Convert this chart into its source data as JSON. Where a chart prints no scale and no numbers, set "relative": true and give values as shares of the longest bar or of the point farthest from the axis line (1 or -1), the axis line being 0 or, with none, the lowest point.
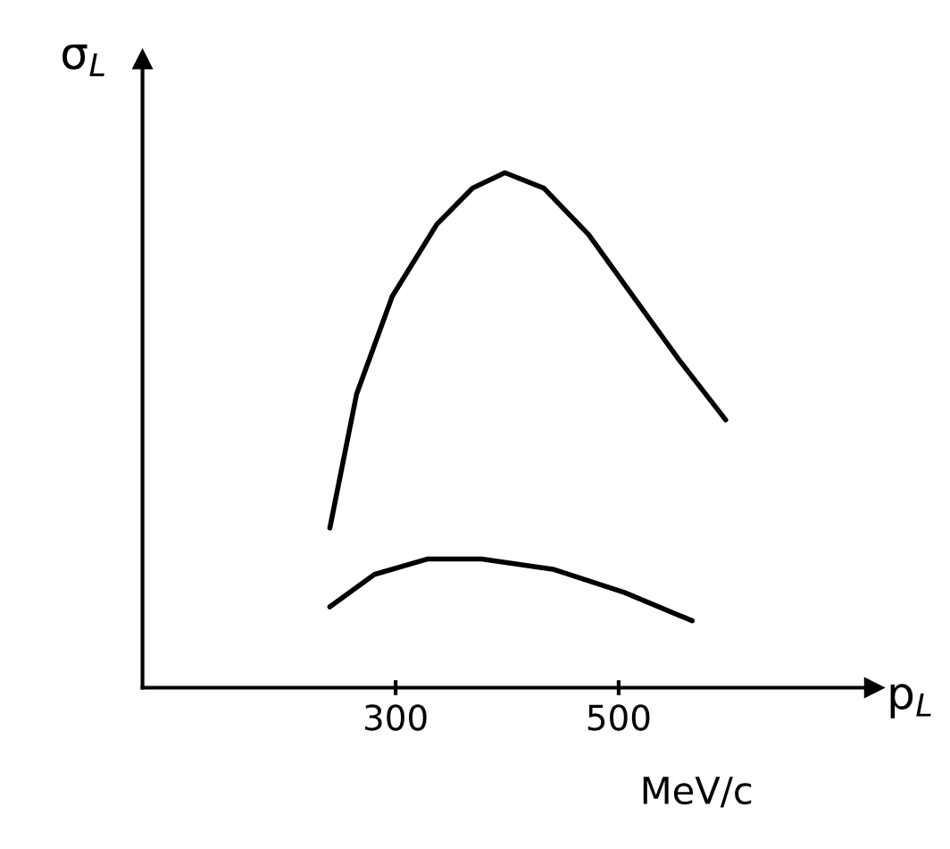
{
  "chart_data": {
    "type": "line",
    "relative": true,
    "xlabel": "p$_{L}$",
    "ylabel": "σ$_{L}$",
    "annotations": [
      "MeV/c"
    ],
    "xlim": [
      73,
      729
    ],
    "xticks": [
      300,
      500
    ],
    "grid": false,
    "marker": "none",
    "line_style": "solid",
    "series": [
      {
        "color": "#000000",
        "x": [
          241,
          265,
          297,
          337,
          369,
          398,
          433,
          473,
          513,
          553,
          596
        ],
        "values": [
          0.31,
          0.57,
          0.76,
          0.9,
          0.97,
          1.0,
          0.97,
          0.88,
          0.76,
          0.64,
          0.52
        ]
      },
      {
        "color": "#000000",
        "x": [
          241,
          281,
          329,
          377,
          441,
          505,
          566
        ],
        "values": [
          0.157,
          0.22,
          0.25,
          0.25,
          0.23,
          0.185,
          0.13
        ]
      }
    ]
  }
}
